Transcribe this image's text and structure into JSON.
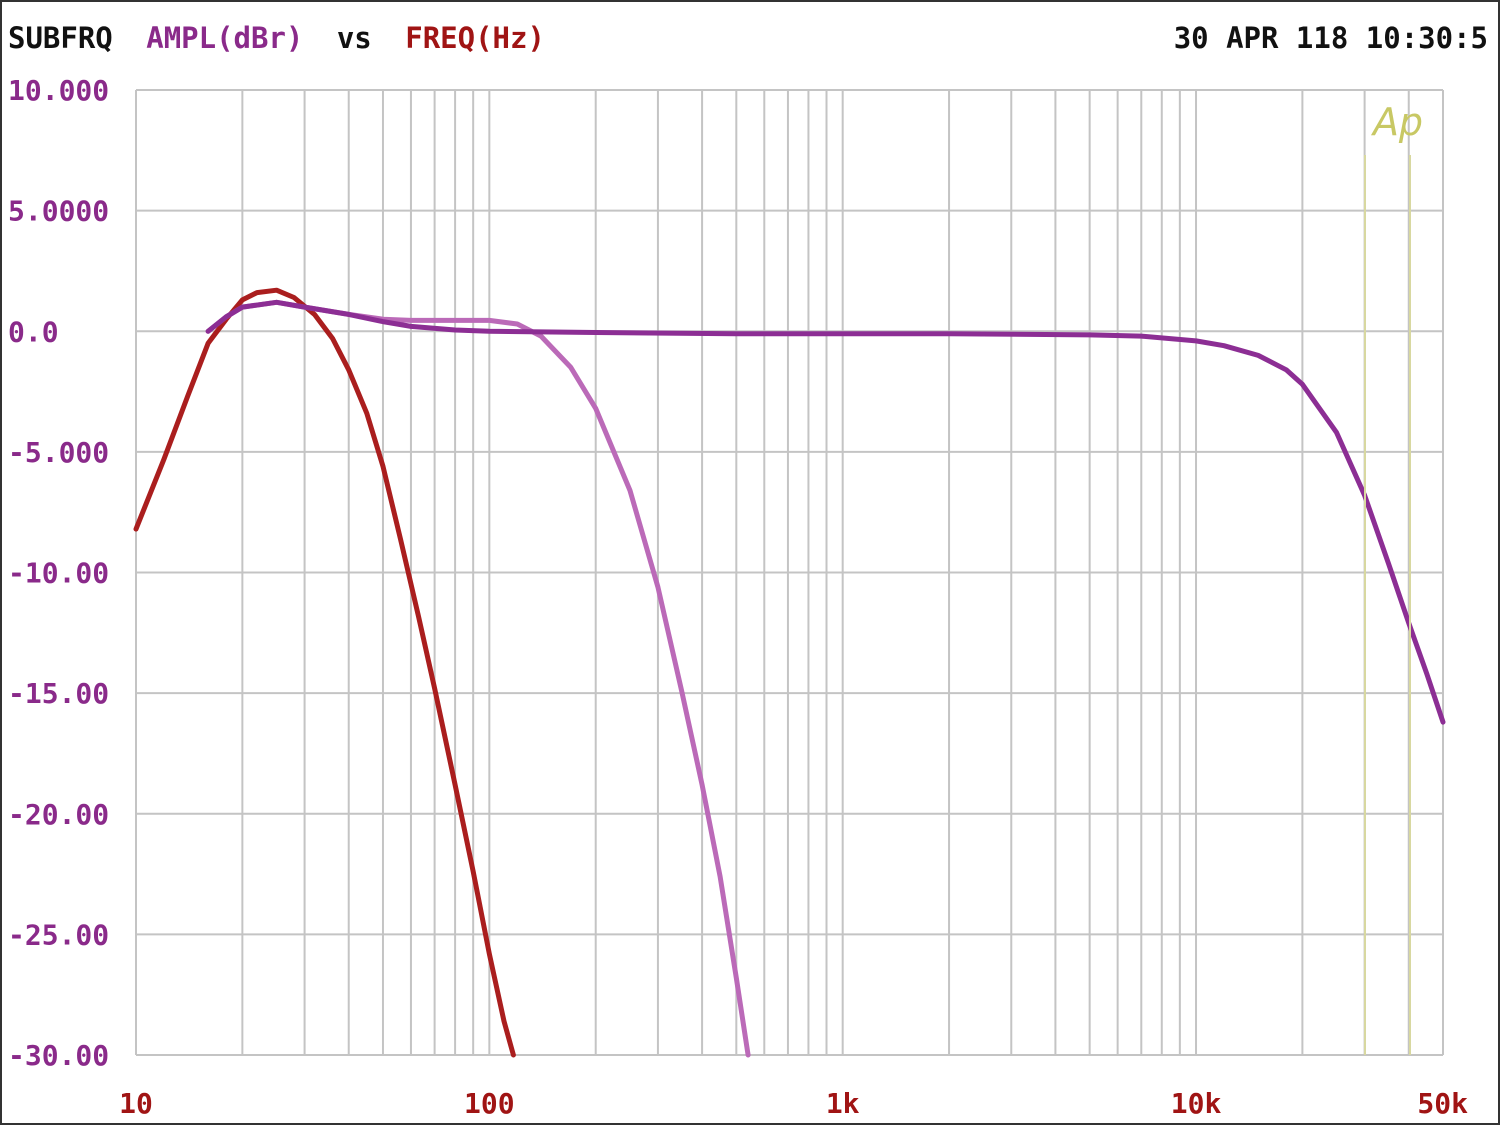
{
  "header": {
    "prefix": "SUBFRQ",
    "y_quantity": "AMPL(dBr)",
    "vs": "vs",
    "x_quantity": "FREQ(Hz)",
    "timestamp": "30 APR 118 10:30:5"
  },
  "logo": {
    "text": "Ap",
    "color": "#c8c864"
  },
  "colors": {
    "frame": "#333333",
    "grid": "#c4c4c4",
    "header_text": "#111111",
    "y_label": "#8a2a8a",
    "x_label": "#a01414"
  },
  "chart_data": {
    "type": "line",
    "title": "SUBFRQ AMPL(dBr) vs FREQ(Hz)",
    "xlabel": "FREQ(Hz)",
    "ylabel": "AMPL(dBr)",
    "xscale": "log",
    "xlim": [
      10,
      50000
    ],
    "ylim": [
      -30,
      10
    ],
    "grid": true,
    "y_ticks": [
      {
        "value": 10,
        "label": "10.000"
      },
      {
        "value": 5,
        "label": "5.0000"
      },
      {
        "value": 0,
        "label": "0.0"
      },
      {
        "value": -5,
        "label": "-5.000"
      },
      {
        "value": -10,
        "label": "-10.00"
      },
      {
        "value": -15,
        "label": "-15.00"
      },
      {
        "value": -20,
        "label": "-20.00"
      },
      {
        "value": -25,
        "label": "-25.00"
      },
      {
        "value": -30,
        "label": "-30.00"
      }
    ],
    "x_ticks": [
      {
        "value": 10,
        "label": "10"
      },
      {
        "value": 100,
        "label": "100"
      },
      {
        "value": 1000,
        "label": "1k"
      },
      {
        "value": 10000,
        "label": "10k"
      },
      {
        "value": 50000,
        "label": "50k"
      }
    ],
    "series": [
      {
        "color": "#aa1e1e",
        "x": [
          10,
          12,
          14,
          16,
          18,
          20,
          22,
          25,
          28,
          32,
          36,
          40,
          45,
          50,
          56,
          63,
          70,
          80,
          90,
          100,
          110,
          117
        ],
        "y": [
          -8.2,
          -5.3,
          -2.7,
          -0.5,
          0.5,
          1.3,
          1.6,
          1.7,
          1.4,
          0.7,
          -0.3,
          -1.6,
          -3.4,
          -5.6,
          -8.6,
          -11.8,
          -14.8,
          -18.8,
          -22.4,
          -25.8,
          -28.6,
          -30
        ]
      },
      {
        "color": "#bb6ab8",
        "x": [
          16,
          18,
          20,
          25,
          30,
          40,
          50,
          60,
          80,
          100,
          120,
          140,
          170,
          200,
          250,
          300,
          350,
          400,
          450,
          500,
          540
        ],
        "y": [
          0,
          0.6,
          1.0,
          1.2,
          1.0,
          0.7,
          0.5,
          0.45,
          0.45,
          0.45,
          0.3,
          -0.2,
          -1.5,
          -3.2,
          -6.6,
          -10.6,
          -14.9,
          -18.8,
          -22.6,
          -26.8,
          -30
        ]
      },
      {
        "color": "#8c2e94",
        "x": [
          16,
          18,
          20,
          25,
          30,
          40,
          50,
          60,
          80,
          100,
          200,
          500,
          1000,
          2000,
          5000,
          7000,
          10000,
          12000,
          15000,
          18000,
          20000,
          25000,
          30000,
          35000,
          40000,
          45000,
          50000
        ],
        "y": [
          0,
          0.6,
          1.0,
          1.2,
          1.0,
          0.7,
          0.4,
          0.2,
          0.05,
          0,
          -0.05,
          -0.1,
          -0.1,
          -0.1,
          -0.15,
          -0.2,
          -0.4,
          -0.6,
          -1.0,
          -1.6,
          -2.2,
          -4.2,
          -6.8,
          -9.6,
          -12.1,
          -14.2,
          -16.2
        ]
      }
    ]
  }
}
